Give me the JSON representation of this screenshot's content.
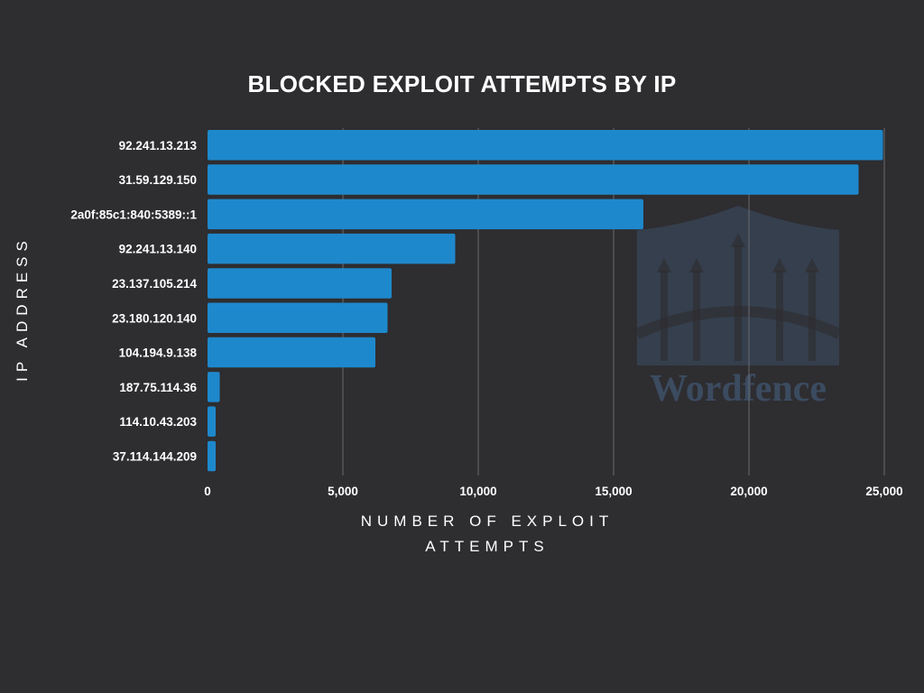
{
  "chart_data": {
    "type": "bar",
    "orientation": "horizontal",
    "title": "BLOCKED EXPLOIT ATTEMPTS BY IP",
    "xlabel": "NUMBER OF EXPLOIT ATTEMPTS",
    "ylabel": "IP ADDRESS",
    "categories": [
      "92.241.13.213",
      "31.59.129.150",
      "2a0f:85c1:840:5389::1",
      "92.241.13.140",
      "23.137.105.214",
      "23.180.120.140",
      "104.194.9.138",
      "187.75.114.36",
      "114.10.43.203",
      "37.114.144.209"
    ],
    "values": [
      24950,
      24050,
      16100,
      9150,
      6800,
      6650,
      6200,
      450,
      300,
      300
    ],
    "xlim": [
      0,
      25000
    ],
    "xticks": [
      0,
      5000,
      10000,
      15000,
      20000,
      25000
    ],
    "xtick_labels": [
      "0",
      "5,000",
      "10,000",
      "15,000",
      "20,000",
      "25,000"
    ],
    "grid": "vertical",
    "bar_color": "#1e88cc",
    "grid_color": "#6b6a6e"
  },
  "watermark": {
    "brand": "Wordfence",
    "color": "#3d4f66"
  }
}
